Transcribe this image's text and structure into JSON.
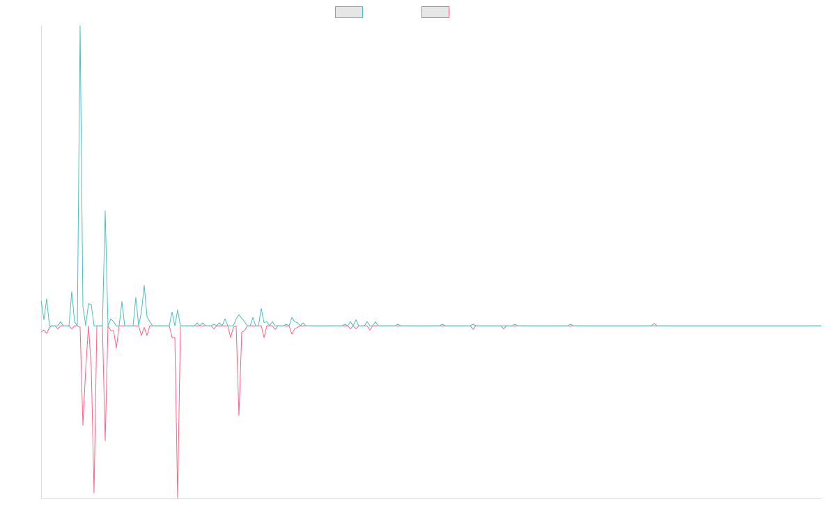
{
  "chart_data": {
    "type": "line",
    "categories": [
      null,
      null,
      null,
      null,
      null,
      null,
      null,
      null,
      null,
      null,
      null,
      null,
      null,
      null,
      null,
      null,
      null,
      null,
      null,
      null,
      null,
      null,
      null,
      null,
      null,
      null,
      null,
      null,
      null,
      null,
      null,
      null,
      null,
      null,
      null,
      null,
      null,
      null,
      null,
      null,
      null,
      null,
      null,
      null,
      null,
      null,
      null,
      null,
      null,
      null,
      null,
      null,
      null,
      null,
      null,
      null,
      null,
      null,
      null,
      null,
      null,
      null,
      null,
      null,
      null,
      null,
      null,
      null,
      null,
      null,
      null,
      null,
      null,
      null,
      null,
      null,
      null,
      null,
      null,
      null,
      null,
      null,
      null,
      null,
      null,
      null,
      null,
      null,
      null,
      null,
      null,
      null,
      null,
      null,
      null,
      null,
      null,
      null,
      null,
      null,
      null,
      null,
      null,
      null,
      null,
      null,
      null,
      null,
      null,
      null,
      null,
      null,
      null,
      null,
      null,
      null,
      null,
      null,
      null,
      null,
      null,
      null,
      null,
      null,
      null,
      null,
      null,
      null,
      null,
      null,
      null,
      null,
      null,
      null,
      null,
      null,
      null,
      null,
      null,
      null,
      null,
      null,
      null,
      null,
      null,
      null,
      null,
      null,
      null,
      null,
      null,
      null,
      null,
      null,
      null,
      null,
      null,
      null,
      null,
      null,
      null,
      null,
      null,
      null,
      null,
      null,
      null,
      null,
      null,
      null,
      null,
      null,
      null,
      null,
      null,
      null,
      null,
      null,
      null,
      null,
      null,
      null,
      null,
      null,
      null,
      null,
      null,
      null,
      null,
      null,
      null,
      null,
      null,
      null,
      null,
      null,
      null,
      null,
      null,
      null,
      null,
      null,
      null,
      null,
      null,
      null,
      null,
      null,
      null,
      null,
      null,
      null,
      null,
      null,
      null,
      null,
      null,
      null,
      null,
      null,
      null,
      null,
      null,
      null,
      null,
      null,
      null,
      null,
      null,
      null,
      null,
      null,
      null,
      null,
      null,
      null,
      null,
      null,
      null,
      null,
      null,
      null,
      null,
      null,
      null,
      null,
      null,
      null,
      null,
      null,
      null,
      null,
      null,
      null,
      null,
      null,
      null,
      null,
      null,
      null,
      null,
      null,
      null,
      null,
      null,
      null,
      null,
      null,
      null,
      null,
      null,
      null,
      null,
      null,
      null,
      null,
      null,
      null,
      null,
      null,
      null
    ],
    "series": [
      {
        "color": "#4bc0c0",
        "values": [
          8.4,
          2,
          9,
          0,
          0,
          0,
          0,
          1.4,
          0,
          0,
          0,
          11.4,
          1.4,
          0,
          100,
          6.5,
          0,
          7.4,
          7,
          0,
          0,
          0,
          0,
          38.3,
          0,
          2.3,
          1.4,
          0,
          0,
          8.1,
          0,
          0,
          0,
          0,
          9.5,
          0,
          4.6,
          13.5,
          3,
          1.4,
          0,
          0,
          0,
          0,
          0,
          0,
          0,
          4.6,
          0,
          5.3,
          0,
          0,
          0,
          0,
          0,
          0,
          1,
          0,
          1,
          0,
          0,
          0,
          0.5,
          0,
          1,
          0,
          2.3,
          0,
          0,
          0,
          2.3,
          3.7,
          2.5,
          1.4,
          0,
          0,
          2.8,
          0,
          0,
          5.8,
          1,
          1.4,
          0,
          1.4,
          0,
          0,
          0,
          0,
          0.5,
          0,
          2.8,
          1.4,
          1,
          0,
          1,
          0,
          0,
          0,
          0,
          0,
          0,
          0,
          0,
          0,
          0,
          0,
          0,
          0,
          0,
          0.5,
          0,
          1.4,
          0,
          2,
          0,
          0,
          0,
          1.4,
          0,
          0,
          1.4,
          0,
          0,
          0,
          0,
          0,
          0,
          0,
          0.5,
          0,
          0,
          0,
          0,
          0,
          0,
          0,
          0,
          0,
          0,
          0,
          0,
          0,
          0,
          0,
          0.5,
          0,
          0,
          0,
          0,
          0,
          0,
          0,
          0,
          0,
          0,
          0.5,
          0,
          0,
          0,
          0,
          0,
          0,
          0,
          0,
          0,
          0,
          0,
          0,
          0,
          0,
          0.5,
          0,
          0,
          0,
          0,
          0,
          0,
          0,
          0,
          0,
          0,
          0,
          0,
          0,
          0,
          0,
          0,
          0,
          0,
          0,
          0.5,
          0,
          0,
          0,
          0,
          0,
          0,
          0,
          0,
          0,
          0,
          0,
          0,
          0,
          0,
          0,
          0,
          0,
          0,
          0,
          0,
          0,
          0,
          0,
          0,
          0,
          0,
          0,
          0,
          0,
          0.8,
          0,
          0,
          0,
          0,
          0,
          0,
          0,
          0,
          0,
          0,
          0,
          0,
          0,
          0,
          0,
          0,
          0,
          0,
          0,
          0,
          0,
          0,
          0,
          0,
          0,
          0,
          0,
          0,
          0,
          0,
          0,
          0,
          0,
          0,
          0,
          0,
          0,
          0,
          0,
          0,
          0,
          0,
          0,
          0,
          0,
          0,
          0,
          0,
          0,
          0,
          0,
          0,
          0,
          0,
          0,
          0,
          0,
          0,
          0,
          0
        ]
      },
      {
        "color": "#ff6384",
        "values": [
          -2.1,
          -1.4,
          -2.5,
          -0.5,
          0,
          0,
          -1,
          0,
          0,
          0,
          0,
          -1,
          0,
          0,
          -0.5,
          -33.2,
          -14.4,
          0,
          -14,
          -55.7,
          0,
          0,
          0,
          -38.3,
          0,
          -1.6,
          -1.6,
          -7.4,
          0,
          0,
          0,
          0,
          0,
          0,
          0,
          0,
          -3.2,
          -0.5,
          -3.2,
          0,
          0,
          0,
          0,
          0,
          0,
          0,
          0,
          -3.9,
          -3.9,
          -57.5,
          0,
          0,
          0,
          0,
          0,
          0,
          0,
          0,
          0,
          0,
          0,
          0,
          -1,
          0,
          0,
          0,
          0,
          0,
          -3.9,
          -0.5,
          0,
          -29.9,
          -2.1,
          -1.6,
          0,
          0,
          0,
          0,
          0,
          0,
          -3.9,
          0,
          0,
          0,
          -1.2,
          0,
          0,
          0,
          0,
          0,
          -2.8,
          -1,
          -0.5,
          0,
          0,
          0,
          0,
          0,
          0,
          0,
          0,
          0,
          0,
          0,
          0,
          0,
          0,
          0,
          0,
          0,
          0,
          -1,
          0,
          -1,
          0,
          0,
          0,
          0,
          -1.4,
          0,
          0,
          0,
          0,
          0,
          0,
          0,
          0,
          0,
          0,
          0,
          0,
          0,
          0,
          0,
          0,
          0,
          0,
          0,
          0,
          0,
          0,
          0,
          0,
          0,
          0,
          0,
          0,
          0,
          0,
          0,
          0,
          0,
          0,
          0,
          0,
          -1.2,
          0,
          0,
          0,
          0,
          0,
          0,
          0,
          0,
          0,
          0,
          -1,
          0,
          0,
          0,
          0,
          0,
          0,
          0,
          0,
          0,
          0,
          0,
          0,
          0,
          0,
          0,
          0,
          0,
          0,
          0,
          0,
          0,
          0,
          0,
          0,
          0,
          0,
          0,
          0,
          0,
          0,
          0,
          0,
          0,
          0,
          0,
          0,
          0,
          0,
          0,
          0,
          0,
          0,
          0,
          0,
          0,
          0,
          0,
          0,
          0,
          0,
          0,
          0,
          0,
          0,
          0,
          0,
          0,
          0,
          0,
          0,
          0,
          0,
          0,
          0,
          0,
          0,
          0,
          0,
          0,
          0,
          0,
          0,
          0,
          0,
          0,
          0,
          0,
          0,
          0,
          0,
          0,
          0,
          0,
          0,
          0,
          0,
          0,
          0,
          0,
          0,
          0,
          0,
          0,
          0,
          0,
          0,
          0,
          0,
          0,
          0,
          0,
          0,
          0,
          0,
          0,
          0,
          0,
          0,
          0,
          0,
          0,
          0,
          0,
          0
        ]
      }
    ],
    "ylim": [
      -57.5,
      100
    ]
  }
}
